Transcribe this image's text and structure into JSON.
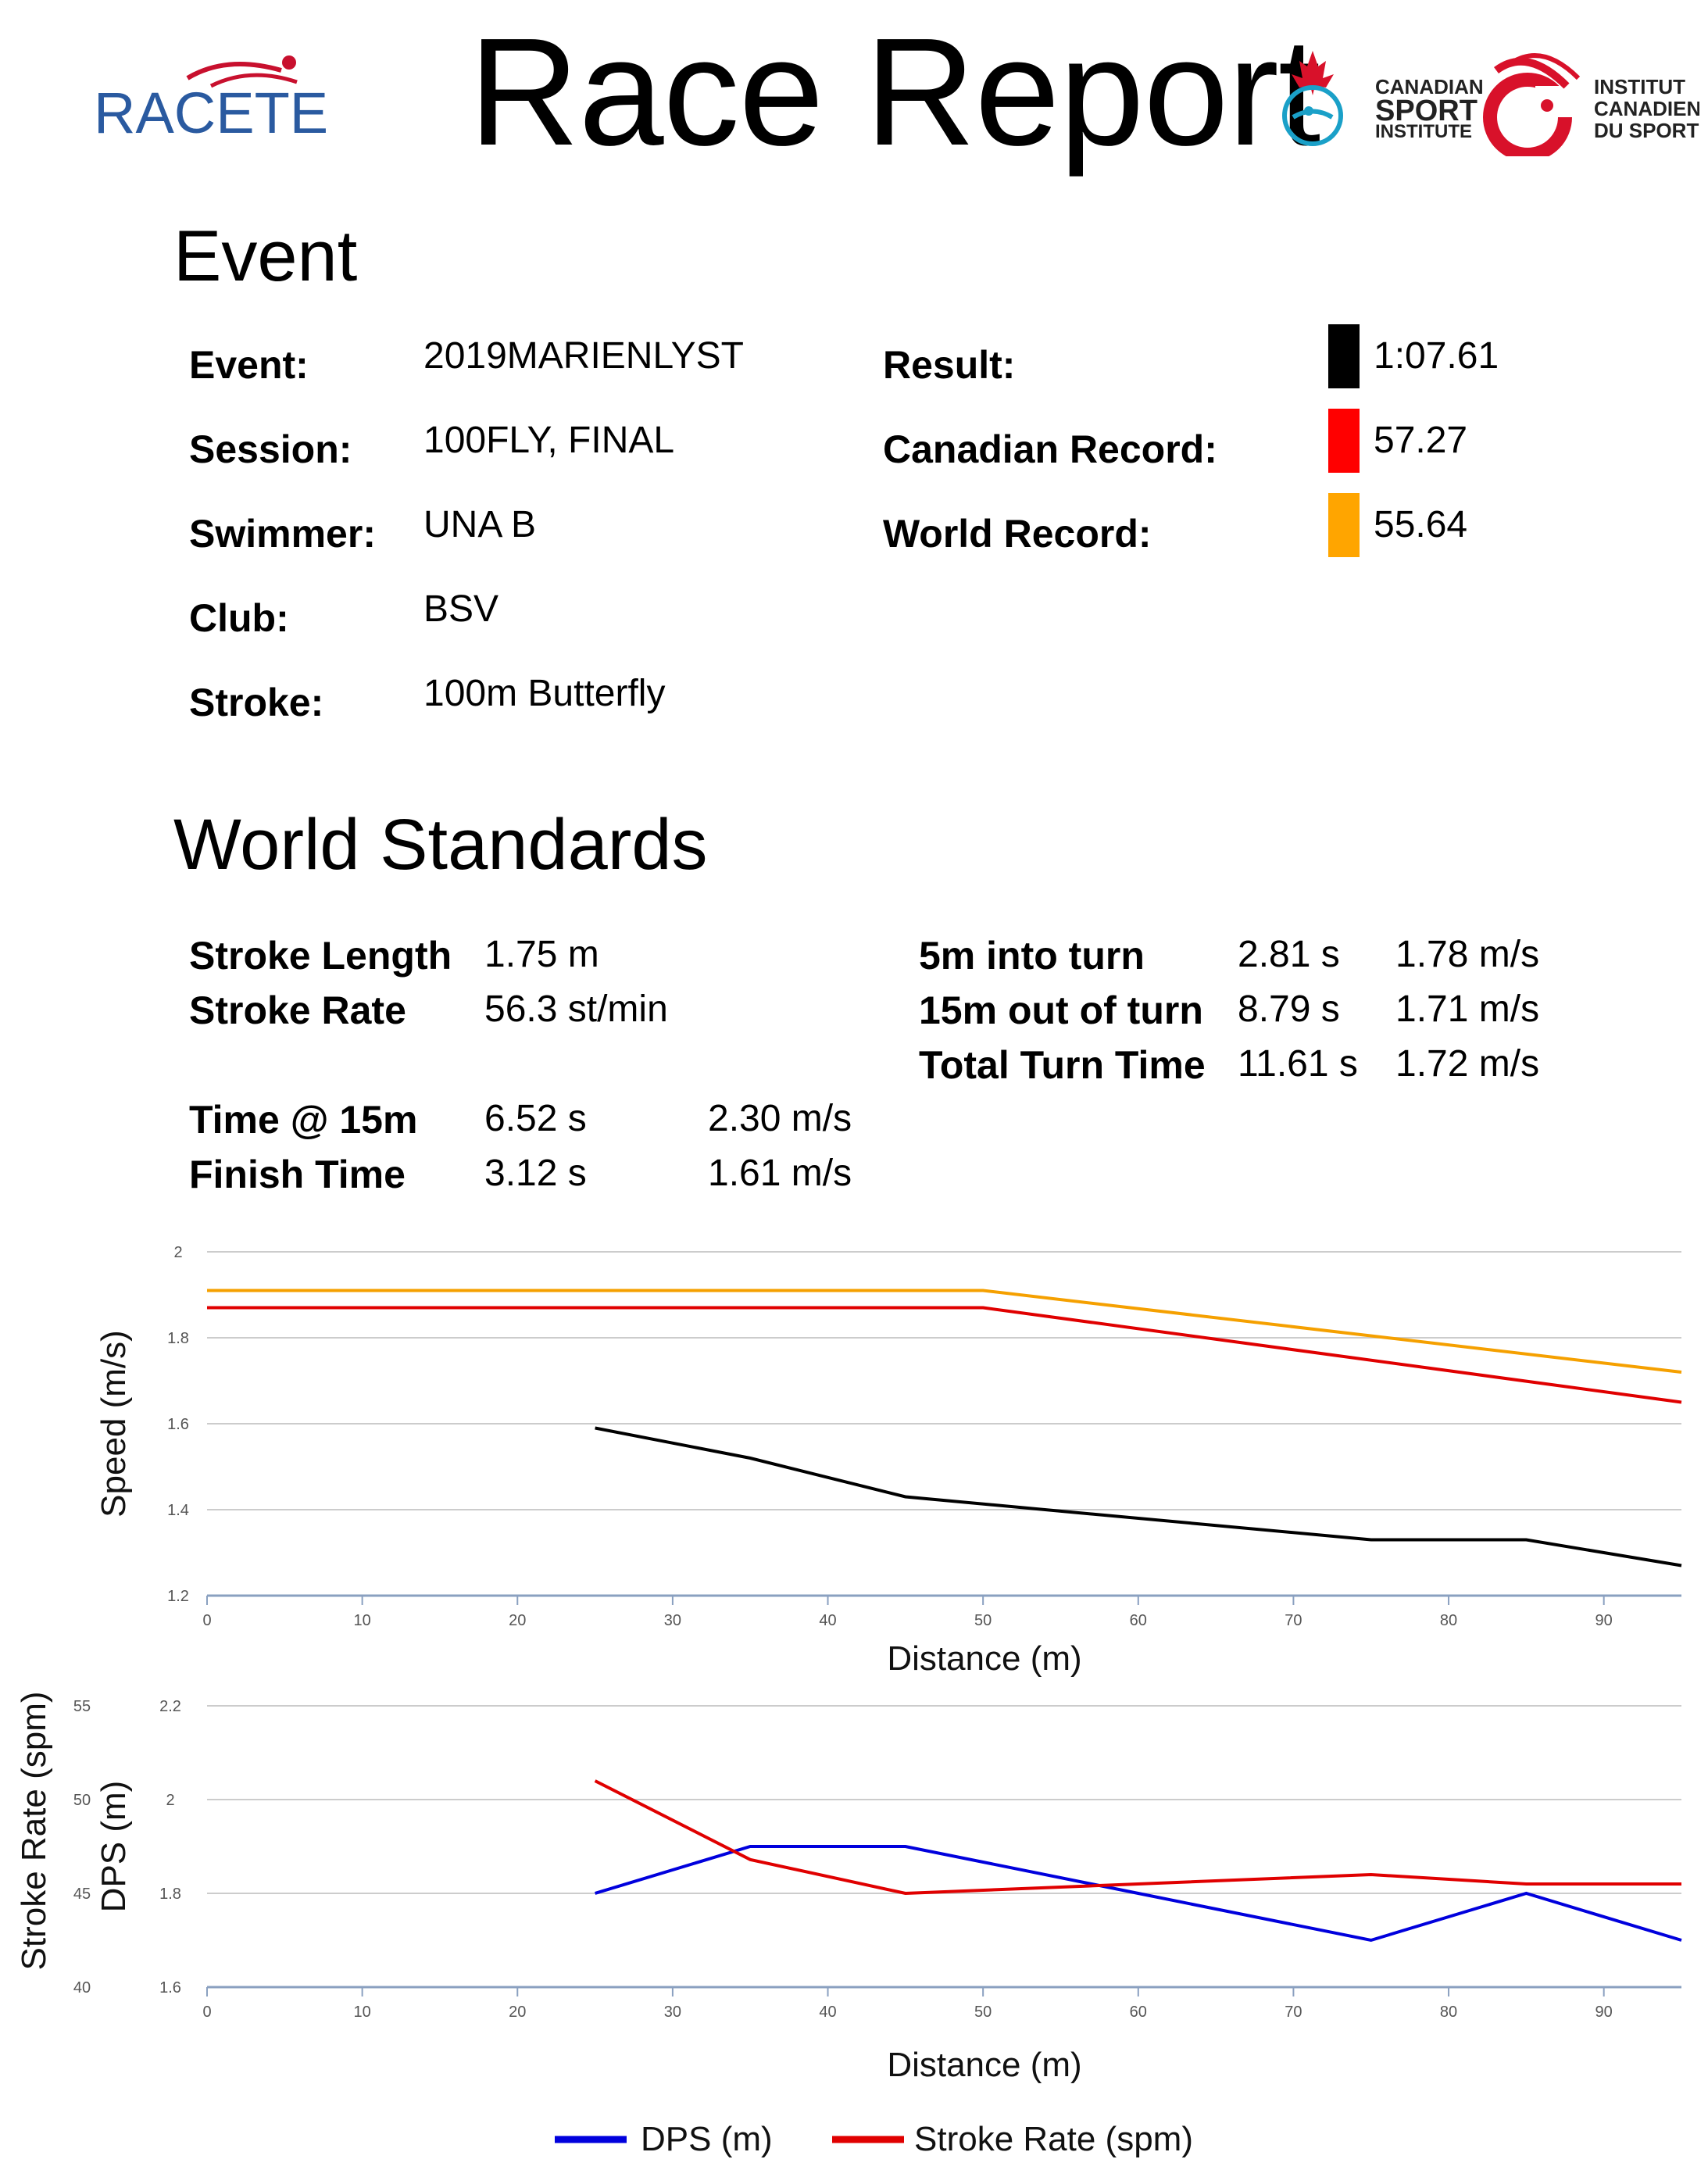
{
  "header": {
    "title": "Race Report",
    "racetek_logo_text": "RACETEK",
    "csi_logo": {
      "en_line1": "CANADIAN",
      "en_line2": "SPORT",
      "en_line3": "INSTITUTE",
      "fr_line1": "INSTITUT",
      "fr_line2": "CANADIEN",
      "fr_line3": "DU SPORT"
    }
  },
  "event_section": {
    "heading": "Event",
    "fields": [
      {
        "label": "Event:",
        "value": "2019MARIENLYST"
      },
      {
        "label": "Session:",
        "value": "100FLY, FINAL"
      },
      {
        "label": "Swimmer:",
        "value": "UNA B"
      },
      {
        "label": "Club:",
        "value": "BSV"
      },
      {
        "label": "Stroke:",
        "value": "100m Butterfly"
      }
    ],
    "results": [
      {
        "label": "Result:",
        "value": "1:07.61",
        "color": "#000000"
      },
      {
        "label": "Canadian Record:",
        "value": "57.27",
        "color": "#ff0000"
      },
      {
        "label": "World Record:",
        "value": "55.64",
        "color": "#ffa500"
      }
    ]
  },
  "standards_section": {
    "heading": "World Standards",
    "stroke": [
      {
        "label": "Stroke Length",
        "value": "1.75 m"
      },
      {
        "label": "Stroke Rate",
        "value": "56.3 st/min"
      }
    ],
    "splits": [
      {
        "label": "Time @ 15m",
        "time": "6.52 s",
        "speed": "2.30 m/s"
      },
      {
        "label": "Finish Time",
        "time": "3.12 s",
        "speed": "1.61 m/s"
      }
    ],
    "turns": [
      {
        "label": "5m into turn",
        "time": "2.81 s",
        "speed": "1.78 m/s"
      },
      {
        "label": "15m out of turn",
        "time": "8.79 s",
        "speed": "1.71 m/s"
      },
      {
        "label": "Total Turn Time",
        "time": "11.61 s",
        "speed": "1.72 m/s"
      }
    ]
  },
  "chart_data": [
    {
      "type": "line",
      "xlabel": "Distance (m)",
      "ylabel": "Speed (m/s)",
      "xlim": [
        0,
        95
      ],
      "ylim": [
        1.2,
        2.0
      ],
      "x_ticks": [
        "0",
        "10",
        "20",
        "30",
        "40",
        "50",
        "60",
        "70",
        "80",
        "90"
      ],
      "y_ticks": [
        "1.2",
        "1.4",
        "1.6",
        "1.8",
        "2"
      ],
      "grid": true,
      "series": [
        {
          "color": "#f5a000",
          "points": [
            [
              0,
              1.91
            ],
            [
              50,
              1.91
            ],
            [
              95,
              1.72
            ]
          ]
        },
        {
          "color": "#e00000",
          "points": [
            [
              0,
              1.87
            ],
            [
              50,
              1.87
            ],
            [
              95,
              1.65
            ]
          ]
        },
        {
          "color": "#000000",
          "points": [
            [
              25,
              1.59
            ],
            [
              35,
              1.52
            ],
            [
              45,
              1.43
            ],
            [
              75,
              1.33
            ],
            [
              85,
              1.33
            ],
            [
              95,
              1.27
            ]
          ]
        }
      ]
    },
    {
      "type": "line",
      "xlabel": "Distance (m)",
      "ylabel": "DPS (m)",
      "ylabel_secondary": "Stroke Rate (spm)",
      "xlim": [
        0,
        95
      ],
      "ylim": [
        1.6,
        2.2
      ],
      "ylim_secondary": [
        40,
        55
      ],
      "x_ticks": [
        "0",
        "10",
        "20",
        "30",
        "40",
        "50",
        "60",
        "70",
        "80",
        "90"
      ],
      "y_ticks": [
        "1.6",
        "1.8",
        "2",
        "2.2"
      ],
      "y_ticks_secondary": [
        "40",
        "45",
        "50",
        "55"
      ],
      "grid": true,
      "legend": "bottom",
      "series": [
        {
          "name": "DPS (m)",
          "color": "#0000dd",
          "axis": "left",
          "points": [
            [
              25,
              1.8
            ],
            [
              35,
              1.9
            ],
            [
              45,
              1.9
            ],
            [
              60,
              1.8
            ],
            [
              75,
              1.7
            ],
            [
              85,
              1.8
            ],
            [
              95,
              1.7
            ]
          ]
        },
        {
          "name": "Stroke Rate (spm)",
          "color": "#e00000",
          "axis": "right",
          "points": [
            [
              25,
              51.0
            ],
            [
              35,
              46.8
            ],
            [
              45,
              45.0
            ],
            [
              75,
              46.0
            ],
            [
              85,
              45.5
            ],
            [
              95,
              45.5
            ]
          ]
        }
      ]
    }
  ]
}
